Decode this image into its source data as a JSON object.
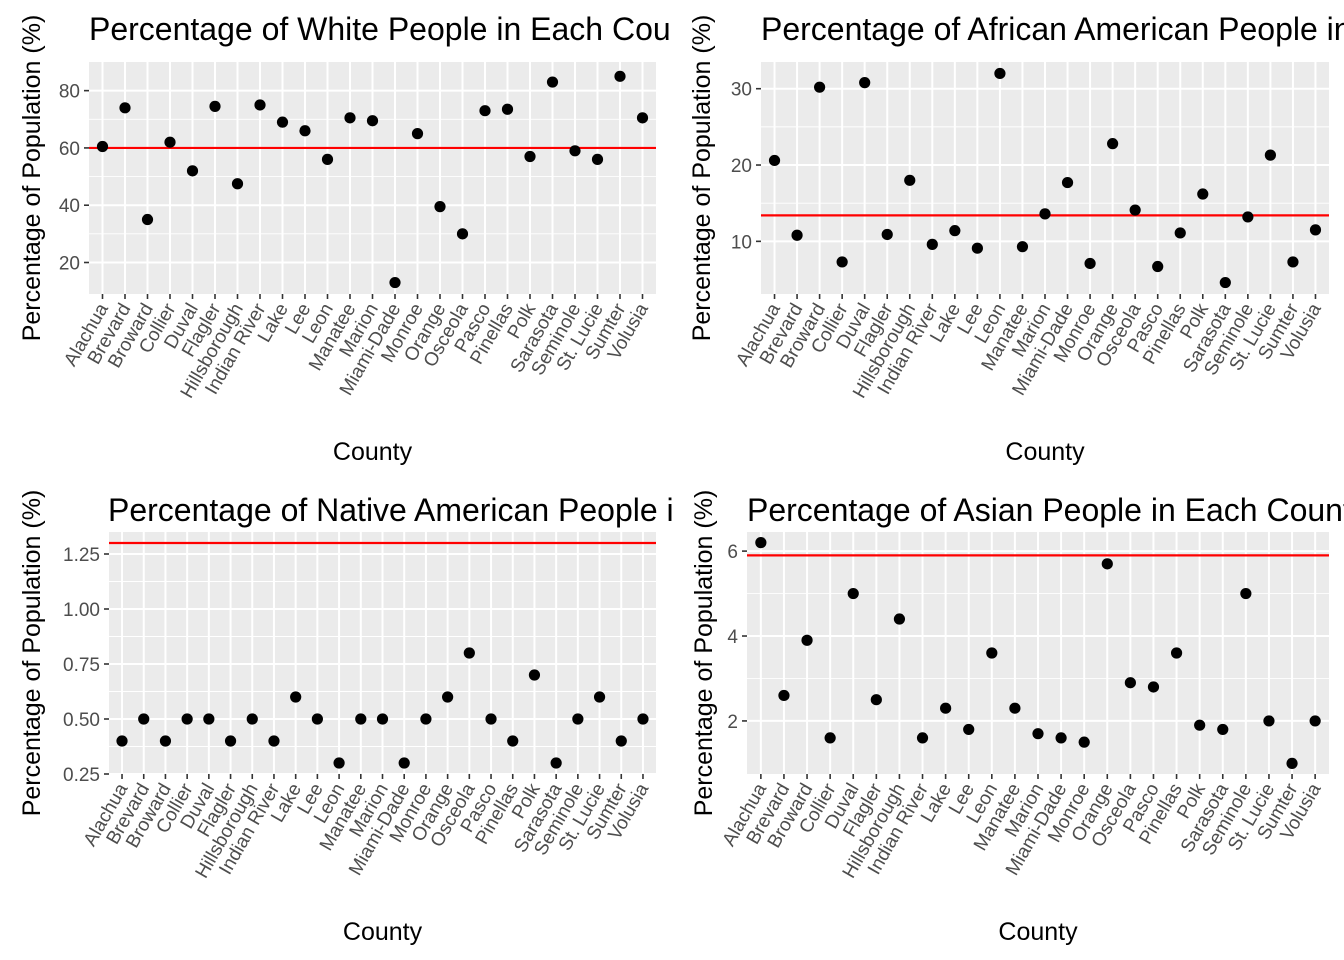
{
  "chart_data": [
    {
      "type": "scatter",
      "title": "Percentage of White People in Each County",
      "xlabel": "County",
      "ylabel": "Percentage of Population (%)",
      "categories": [
        "Alachua",
        "Brevard",
        "Broward",
        "Collier",
        "Duval",
        "Flagler",
        "Hillsborough",
        "Indian River",
        "Lake",
        "Lee",
        "Leon",
        "Manatee",
        "Marion",
        "Miami-Dade",
        "Monroe",
        "Orange",
        "Osceola",
        "Pasco",
        "Pinellas",
        "Polk",
        "Sarasota",
        "Seminole",
        "St. Lucie",
        "Sumter",
        "Volusia"
      ],
      "values": [
        60.5,
        74,
        35,
        62,
        52,
        74.5,
        47.5,
        75,
        69,
        66,
        56,
        70.5,
        69.5,
        13,
        65,
        39.5,
        30,
        73,
        73.5,
        57,
        83,
        59,
        56,
        85,
        70.5
      ],
      "reference_line": 60,
      "ylim": [
        9,
        90
      ],
      "yticks": [
        20,
        40,
        60,
        80
      ],
      "grid": true,
      "point_color": "#000000",
      "line_color": "#ff0000",
      "panel_bg": "#ebebeb"
    },
    {
      "type": "scatter",
      "title": "Percentage of African American People in Each County",
      "xlabel": "County",
      "ylabel": "Percentage of Population (%)",
      "categories": [
        "Alachua",
        "Brevard",
        "Broward",
        "Collier",
        "Duval",
        "Flagler",
        "Hillsborough",
        "Indian River",
        "Lake",
        "Lee",
        "Leon",
        "Manatee",
        "Marion",
        "Miami-Dade",
        "Monroe",
        "Orange",
        "Osceola",
        "Pasco",
        "Pinellas",
        "Polk",
        "Sarasota",
        "Seminole",
        "St. Lucie",
        "Sumter",
        "Volusia"
      ],
      "values": [
        20.6,
        10.8,
        30.2,
        7.3,
        30.8,
        10.9,
        18,
        9.6,
        11.4,
        9.1,
        32,
        9.3,
        13.6,
        17.7,
        7.1,
        22.8,
        14.1,
        6.7,
        11.1,
        16.2,
        4.6,
        13.2,
        21.3,
        7.3,
        11.5
      ],
      "reference_line": 13.4,
      "ylim": [
        3.1,
        33.5
      ],
      "yticks": [
        10,
        20,
        30
      ],
      "grid": true,
      "point_color": "#000000",
      "line_color": "#ff0000",
      "panel_bg": "#ebebeb"
    },
    {
      "type": "scatter",
      "title": "Percentage of Native American People in Each County",
      "xlabel": "County",
      "ylabel": "Percentage of Population (%)",
      "categories": [
        "Alachua",
        "Brevard",
        "Broward",
        "Collier",
        "Duval",
        "Flagler",
        "Hillsborough",
        "Indian River",
        "Lake",
        "Lee",
        "Leon",
        "Manatee",
        "Marion",
        "Miami-Dade",
        "Monroe",
        "Orange",
        "Osceola",
        "Pasco",
        "Pinellas",
        "Polk",
        "Sarasota",
        "Seminole",
        "St. Lucie",
        "Sumter",
        "Volusia"
      ],
      "values": [
        0.4,
        0.5,
        0.4,
        0.5,
        0.5,
        0.4,
        0.5,
        0.4,
        0.6,
        0.5,
        0.3,
        0.5,
        0.5,
        0.3,
        0.5,
        0.6,
        0.8,
        0.5,
        0.4,
        0.7,
        0.3,
        0.5,
        0.6,
        0.4,
        0.5
      ],
      "reference_line": 1.3,
      "ylim": [
        0.25,
        1.35
      ],
      "yticks": [
        0.25,
        0.5,
        0.75,
        1.0,
        1.25
      ],
      "ytick_labels": [
        "0.25",
        "0.50",
        "0.75",
        "1.00",
        "1.25"
      ],
      "grid": true,
      "point_color": "#000000",
      "line_color": "#ff0000",
      "panel_bg": "#ebebeb"
    },
    {
      "type": "scatter",
      "title": "Percentage of Asian People in Each County",
      "xlabel": "County",
      "ylabel": "Percentage of Population (%)",
      "categories": [
        "Alachua",
        "Brevard",
        "Broward",
        "Collier",
        "Duval",
        "Flagler",
        "Hillsborough",
        "Indian River",
        "Lake",
        "Lee",
        "Leon",
        "Manatee",
        "Marion",
        "Miami-Dade",
        "Monroe",
        "Orange",
        "Osceola",
        "Pasco",
        "Pinellas",
        "Polk",
        "Sarasota",
        "Seminole",
        "St. Lucie",
        "Sumter",
        "Volusia"
      ],
      "values": [
        6.2,
        2.6,
        3.9,
        1.6,
        5,
        2.5,
        4.4,
        1.6,
        2.3,
        1.8,
        3.6,
        2.3,
        1.7,
        1.6,
        1.5,
        5.7,
        2.9,
        2.8,
        3.6,
        1.9,
        1.8,
        5,
        2,
        1,
        2
      ],
      "reference_line": 5.9,
      "ylim": [
        0.75,
        6.45
      ],
      "yticks": [
        2,
        4,
        6
      ],
      "grid": true,
      "point_color": "#000000",
      "line_color": "#ff0000",
      "panel_bg": "#ebebeb"
    }
  ]
}
